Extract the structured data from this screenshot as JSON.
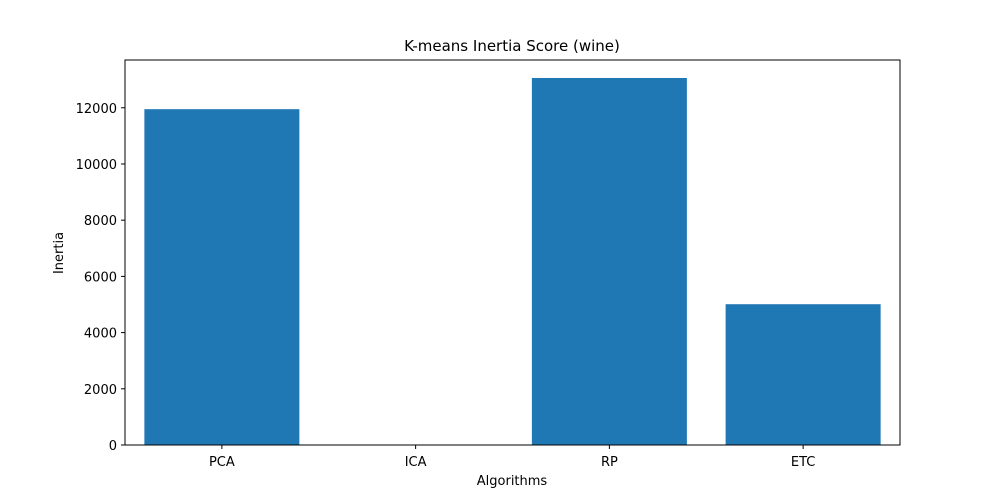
{
  "chart_data": {
    "type": "bar",
    "title": "K-means Inertia Score (wine)",
    "xlabel": "Algorithms",
    "ylabel": "Inertia",
    "categories": [
      "PCA",
      "ICA",
      "RP",
      "ETC"
    ],
    "values": [
      11950,
      0,
      13060,
      5010
    ],
    "ylim": [
      0,
      13700
    ],
    "yticks": [
      0,
      2000,
      4000,
      6000,
      8000,
      10000,
      12000
    ],
    "bar_color": "#1f77b4",
    "grid": false,
    "legend": "none"
  }
}
